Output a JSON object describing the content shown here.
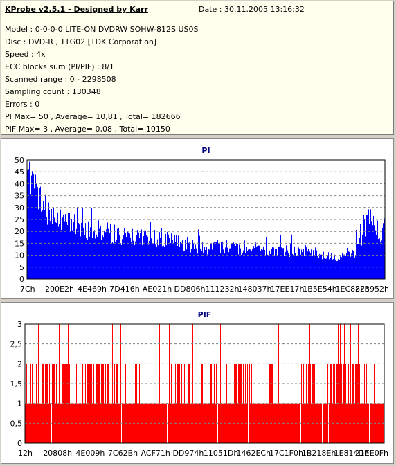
{
  "header": {
    "title": "KProbe v2.5.1 - Designed by Karr",
    "date": "Date : 30.11.2005 13:16:32"
  },
  "info_lines": [
    "Model : 0-0-0-0 LITE-ON DVDRW SOHW-812S  US0S",
    "Disc : DVD-R , TTG02 [TDK Corporation]",
    "Speed : 4x",
    "ECC blocks sum (PI/PIF) : 8/1",
    "Scanned range : 0 - 2298508",
    "Sampling count : 130348",
    "Errors : 0",
    "PI Max= 50 , Average= 10,81 , Total= 182666",
    "PIF Max= 3 , Average= 0,08 , Total= 10150"
  ],
  "colors": {
    "pi": "#0000ff",
    "pif": "#ff0000",
    "title": "#000080",
    "grid": "#808080"
  },
  "chart_data": [
    {
      "type": "area",
      "title": "PI",
      "ylim": [
        0,
        50
      ],
      "y_ticks": [
        "0",
        "5",
        "10",
        "15",
        "20",
        "25",
        "30",
        "35",
        "40",
        "45",
        "50"
      ],
      "x_ticks": [
        "7Ch",
        "200E2h",
        "4E469h",
        "7D416h",
        "AE021h",
        "DD806h",
        "111232h",
        "148037h",
        "17EE17h",
        "1B5E54h",
        "1EC88Fh",
        "223952h"
      ],
      "grid": "horizontal dashed",
      "x_range": [
        0,
        2298508
      ],
      "series": [
        {
          "x": [
            124,
            60000,
            130000,
            250000,
            400000,
            550000,
            713000,
            850000,
            1000000,
            1120000,
            1250000,
            1350000,
            1450000,
            1568000,
            1650000,
            1750000,
            1850000,
            1950000,
            2050000,
            2120000,
            2170000,
            2220000,
            2250000,
            2270000,
            2285000,
            2298508
          ],
          "values": [
            44,
            36,
            28,
            24,
            21,
            19,
            17,
            17,
            15,
            13,
            14,
            13,
            12,
            11,
            12,
            12,
            11,
            10,
            9,
            12,
            22,
            24,
            22,
            17,
            26,
            28
          ],
          "max_values": [
            50,
            46,
            38,
            33,
            30,
            28,
            26,
            25,
            23,
            21,
            22,
            21,
            20,
            19,
            20,
            21,
            19,
            18,
            18,
            22,
            32,
            35,
            33,
            27,
            34,
            36
          ]
        }
      ]
    },
    {
      "type": "bar",
      "title": "PIF",
      "ylim": [
        0,
        3
      ],
      "y_ticks": [
        "0",
        "0,5",
        "1",
        "1,5",
        "2",
        "2,5",
        "3"
      ],
      "x_ticks": [
        "12h",
        "20808h",
        "4E009h",
        "7C62Bh",
        "ACF71h",
        "DD974h",
        "11051Dh",
        "1462ECh",
        "17C1F0h",
        "1B218Eh",
        "1E814Dh",
        "21EE0Fh"
      ],
      "grid": "horizontal dashed",
      "x_range": [
        0,
        2298508
      ],
      "series": [
        {
          "x": [
            18,
            40000,
            120000,
            200000,
            319000,
            330000,
            500000,
            560000,
            650000,
            720000,
            800000,
            906000,
            950000,
            1050000,
            1100000,
            1200000,
            1300000,
            1400000,
            1500000,
            1600000,
            1700000,
            1800000,
            1900000,
            1980000,
            2010000,
            2100000,
            2200000,
            2298508
          ],
          "values": [
            2,
            2,
            2,
            2,
            2,
            2,
            2,
            2,
            1,
            2,
            1,
            1,
            2,
            2,
            1,
            2,
            1,
            2,
            1,
            2,
            1,
            2,
            1,
            3,
            2,
            2,
            2,
            1
          ],
          "spikes_to_3": [
            84000,
            216000,
            275000,
            550000,
            560000,
            565000,
            610000,
            860000,
            920000,
            1070000,
            1250000,
            1470000,
            1620000,
            1820000,
            1960000,
            2000000,
            2015000,
            2040000,
            2080000,
            2130000,
            2180000,
            2220000
          ]
        }
      ]
    }
  ]
}
